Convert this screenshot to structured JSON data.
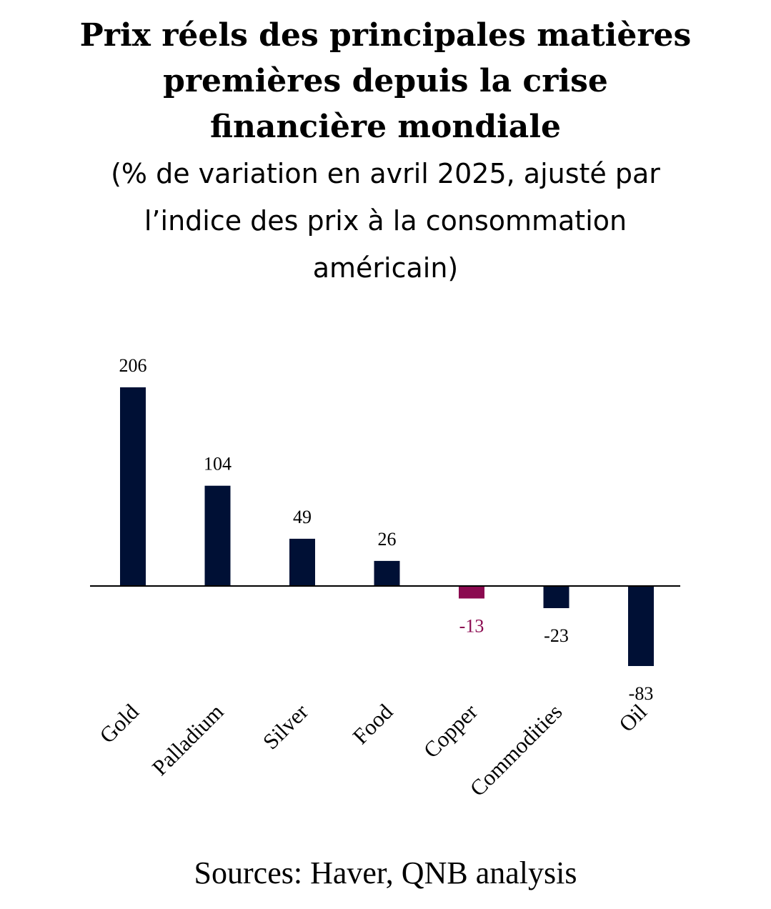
{
  "header": {
    "title": "Prix réels des principales matières premières depuis la crise financière mondiale",
    "subtitle": "(% de variation en avril 2025, ajusté par l’indice des prix à la consommation américain)"
  },
  "source": "Sources: Haver, QNB analysis",
  "colors": {
    "bar": "#001035",
    "highlight": "#8B0A50",
    "label": "#000000"
  },
  "chart_data": {
    "type": "bar",
    "categories": [
      "Gold",
      "Palladium",
      "Silver",
      "Food",
      "Copper",
      "Commodities",
      "Oil"
    ],
    "values": [
      206,
      104,
      49,
      26,
      -13,
      -23,
      -83
    ],
    "data_labels": [
      "206",
      "104",
      "49",
      "26",
      "-13",
      "-23",
      "-83"
    ],
    "highlight_category": "Copper",
    "xlabel": "",
    "ylabel": "",
    "grid": false,
    "legend": "none"
  }
}
